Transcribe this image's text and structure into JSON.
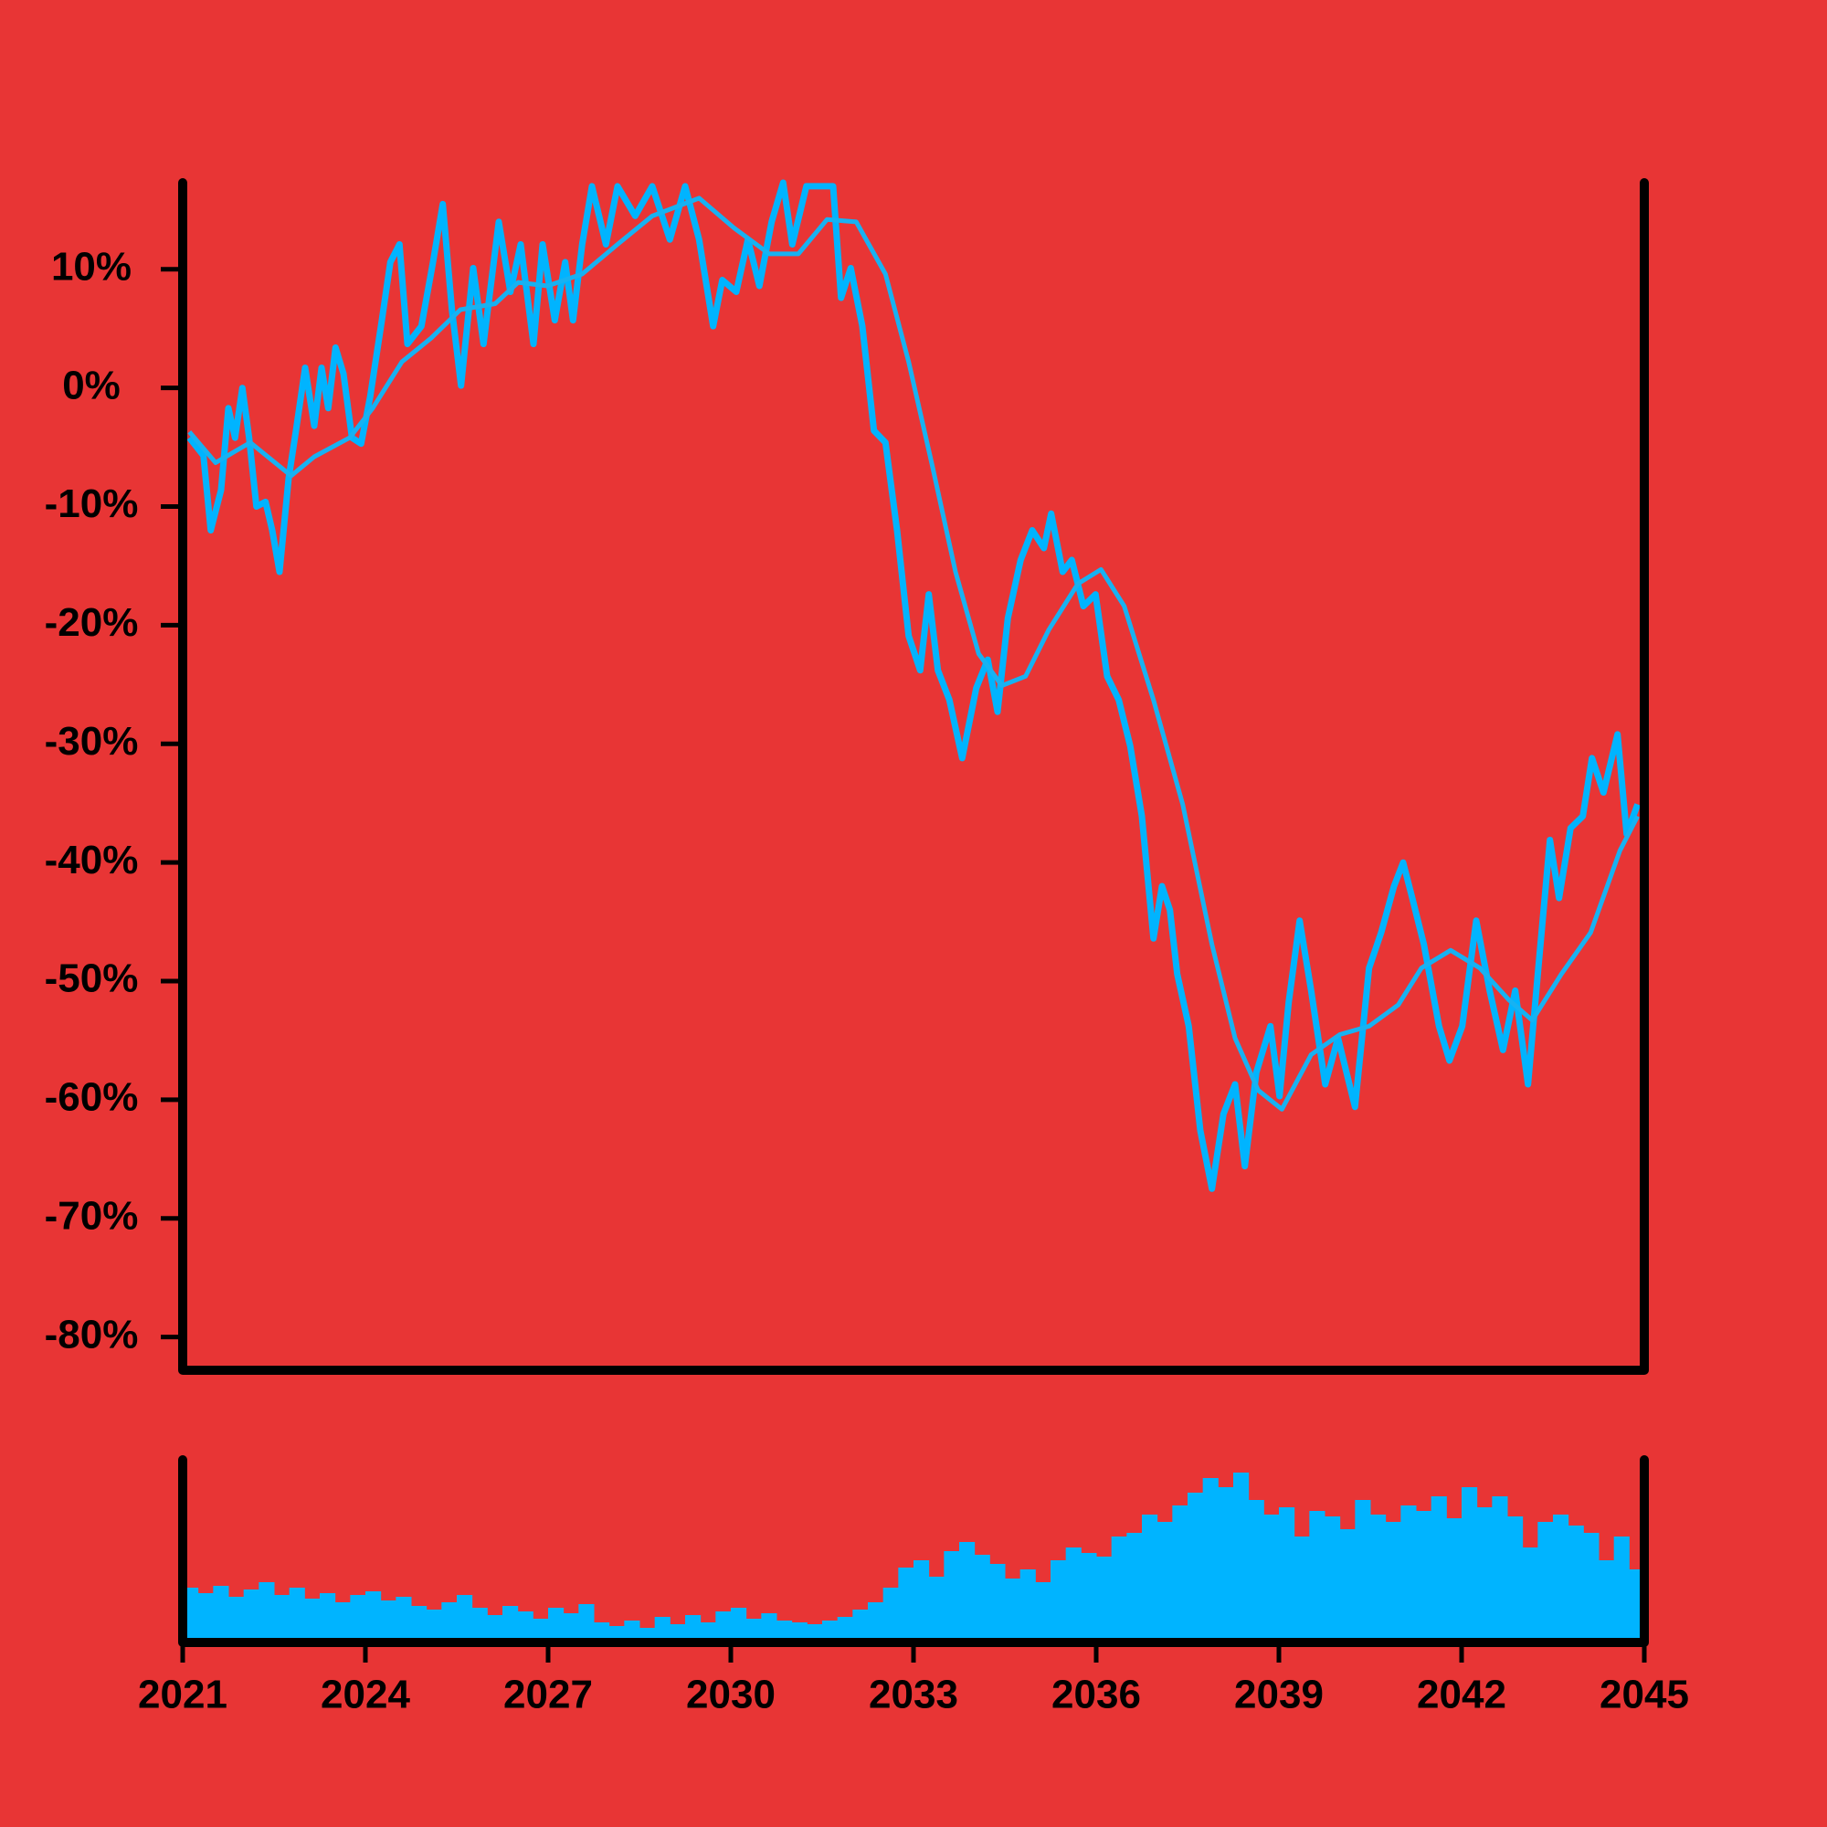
{
  "chart_data": [
    {
      "type": "line",
      "xlim": [
        2021,
        2045
      ],
      "ylim": [
        -82.8,
        17.3
      ],
      "yticks": [
        {
          "value": 10,
          "label": "10%"
        },
        {
          "value": 0,
          "label": "0%"
        },
        {
          "value": -10,
          "label": "-10%"
        },
        {
          "value": -20,
          "label": "-20%"
        },
        {
          "value": -30,
          "label": "-30%"
        },
        {
          "value": -40,
          "label": "-40%"
        },
        {
          "value": -50,
          "label": "-50%"
        },
        {
          "value": -60,
          "label": "-60%"
        },
        {
          "value": -70,
          "label": "-70%"
        },
        {
          "value": -80,
          "label": "-80%"
        }
      ],
      "series": [
        {
          "color": "#00b4ff",
          "x": [
            2021.11,
            2021.34,
            2021.46,
            2021.63,
            2021.75,
            2021.86,
            2021.98,
            2022.09,
            2022.21,
            2022.36,
            2022.47,
            2022.59,
            2022.74,
            2022.86,
            2023.01,
            2023.16,
            2023.28,
            2023.39,
            2023.51,
            2023.64,
            2023.78,
            2023.93,
            2024.08,
            2024.27,
            2024.41,
            2024.56,
            2024.69,
            2024.92,
            2025.11,
            2025.27,
            2025.42,
            2025.57,
            2025.77,
            2025.94,
            2026.19,
            2026.38,
            2026.55,
            2026.76,
            2026.91,
            2027.11,
            2027.28,
            2027.41,
            2027.56,
            2027.72,
            2027.95,
            2028.14,
            2028.43,
            2028.71,
            2029.0,
            2029.25,
            2029.48,
            2029.71,
            2029.86,
            2030.09,
            2030.28,
            2030.47,
            2030.67,
            2030.86,
            2031.01,
            2031.24,
            2031.68,
            2031.81,
            2031.97,
            2032.16,
            2032.35,
            2032.54,
            2032.73,
            2032.92,
            2033.11,
            2033.25,
            2033.4,
            2033.59,
            2033.8,
            2034.03,
            2034.22,
            2034.38,
            2034.55,
            2034.76,
            2034.95,
            2035.14,
            2035.26,
            2035.45,
            2035.6,
            2035.79,
            2035.99,
            2036.18,
            2036.37,
            2036.56,
            2036.75,
            2036.94,
            2037.08,
            2037.21,
            2037.33,
            2037.52,
            2037.71,
            2037.9,
            2038.09,
            2038.28,
            2038.44,
            2038.63,
            2038.86,
            2039.01,
            2039.16,
            2039.34,
            2039.53,
            2039.76,
            2039.97,
            2040.25,
            2040.48,
            2040.68,
            2040.89,
            2041.04,
            2041.19,
            2041.38,
            2041.63,
            2041.8,
            2042.01,
            2042.24,
            2042.46,
            2042.68,
            2042.88,
            2043.09,
            2043.26,
            2043.45,
            2043.6,
            2043.79,
            2043.99,
            2044.14,
            2044.33,
            2044.56,
            2044.71,
            2044.89
          ],
          "values": [
            -4.2,
            -5.7,
            -12,
            -8.6,
            -1.7,
            -4.2,
            0,
            -4.2,
            -10,
            -9.6,
            -12,
            -15.5,
            -7.6,
            -3.6,
            1.7,
            -3.2,
            1.7,
            -1.7,
            3.4,
            1.2,
            -4.2,
            -4.7,
            -0.7,
            5.7,
            10.6,
            12.1,
            3.7,
            5.2,
            10.6,
            15.5,
            6.6,
            0.2,
            10.1,
            3.7,
            14,
            8.1,
            12.1,
            3.7,
            12.1,
            5.7,
            10.6,
            5.7,
            12.1,
            17,
            12.1,
            17,
            14.5,
            17,
            12.5,
            17,
            12.5,
            5.2,
            9.1,
            8.1,
            12.5,
            8.6,
            14,
            17.3,
            12.1,
            17,
            17,
            7.6,
            10.1,
            5.2,
            -3.6,
            -4.6,
            -12,
            -20.9,
            -23.8,
            -17.4,
            -23.8,
            -26.3,
            -31.2,
            -25.3,
            -22.9,
            -27.3,
            -19.4,
            -14.5,
            -12,
            -13.5,
            -10.6,
            -15.5,
            -14.5,
            -18.4,
            -17.4,
            -24.3,
            -26.3,
            -30.2,
            -36.1,
            -46.4,
            -42,
            -44,
            -49.4,
            -53.8,
            -62.6,
            -67.5,
            -61.2,
            -58.7,
            -65.6,
            -57.7,
            -53.8,
            -59.7,
            -51.8,
            -44.9,
            -50.8,
            -58.7,
            -54.8,
            -60.6,
            -48.9,
            -45.9,
            -42,
            -40,
            -43,
            -46.9,
            -53.8,
            -56.7,
            -53.8,
            -44.9,
            -50.8,
            -55.8,
            -50.8,
            -58.7,
            -48.9,
            -38.1,
            -43,
            -37.1,
            -36.1,
            -31.2,
            -34.1,
            -29.2,
            -37.6,
            -35.1
          ]
        },
        {
          "color": "#17b2f2",
          "x": [
            2021.11,
            2021.54,
            2022.11,
            2022.78,
            2023.16,
            2023.74,
            2024.12,
            2024.6,
            2025.08,
            2025.56,
            2026.13,
            2026.51,
            2026.99,
            2027.56,
            2028.14,
            2028.71,
            2029.48,
            2030.05,
            2030.63,
            2031.11,
            2031.58,
            2032.06,
            2032.54,
            2032.92,
            2033.31,
            2033.69,
            2034.07,
            2034.45,
            2034.84,
            2035.22,
            2035.7,
            2036.08,
            2036.46,
            2036.94,
            2037.42,
            2037.9,
            2038.28,
            2038.66,
            2039.05,
            2039.53,
            2040.0,
            2040.48,
            2040.96,
            2041.34,
            2041.82,
            2042.3,
            2042.78,
            2043.16,
            2043.64,
            2044.12,
            2044.6,
            2044.89
          ],
          "values": [
            -3.7,
            -6.3,
            -4.6,
            -7.4,
            -5.8,
            -4.2,
            -1.7,
            2.2,
            4.2,
            6.6,
            7.1,
            8.9,
            8.6,
            9.6,
            12.1,
            14.5,
            16.0,
            13.5,
            11.3,
            11.3,
            14.2,
            14.0,
            9.6,
            2.2,
            -6.6,
            -15.5,
            -22.4,
            -25.1,
            -24.3,
            -20.4,
            -16.5,
            -15.3,
            -18.4,
            -26.3,
            -35.1,
            -46.9,
            -54.8,
            -59.2,
            -60.8,
            -56.2,
            -54.5,
            -53.8,
            -52.0,
            -48.9,
            -47.4,
            -48.9,
            -51.6,
            -53.3,
            -49.4,
            -45.9,
            -39.0,
            -36.1
          ]
        }
      ]
    },
    {
      "type": "bar",
      "color": "#00b4ff",
      "xlim": [
        2021,
        2045
      ],
      "ylim": [
        0,
        100
      ],
      "xticks": [
        2021,
        2024,
        2027,
        2030,
        2033,
        2036,
        2039,
        2042,
        2045
      ],
      "x": [
        2021.125,
        2021.375,
        2021.625,
        2021.875,
        2022.125,
        2022.375,
        2022.625,
        2022.875,
        2023.125,
        2023.375,
        2023.625,
        2023.875,
        2024.125,
        2024.375,
        2024.625,
        2024.875,
        2025.125,
        2025.375,
        2025.625,
        2025.875,
        2026.125,
        2026.375,
        2026.625,
        2026.875,
        2027.125,
        2027.375,
        2027.625,
        2027.875,
        2028.125,
        2028.375,
        2028.625,
        2028.875,
        2029.125,
        2029.375,
        2029.625,
        2029.875,
        2030.125,
        2030.375,
        2030.625,
        2030.875,
        2031.125,
        2031.375,
        2031.625,
        2031.875,
        2032.125,
        2032.375,
        2032.625,
        2032.875,
        2033.125,
        2033.375,
        2033.625,
        2033.875,
        2034.125,
        2034.375,
        2034.625,
        2034.875,
        2035.125,
        2035.375,
        2035.625,
        2035.875,
        2036.125,
        2036.375,
        2036.625,
        2036.875,
        2037.125,
        2037.375,
        2037.625,
        2037.875,
        2038.125,
        2038.375,
        2038.625,
        2038.875,
        2039.125,
        2039.375,
        2039.625,
        2039.875,
        2040.125,
        2040.375,
        2040.625,
        2040.875,
        2041.125,
        2041.375,
        2041.625,
        2041.875,
        2042.125,
        2042.375,
        2042.625,
        2042.875,
        2043.125,
        2043.375,
        2043.625,
        2043.875,
        2044.125,
        2044.375,
        2044.625,
        2044.875
      ],
      "values": [
        30,
        27,
        31,
        25,
        29,
        33,
        26,
        30,
        24,
        27,
        22,
        26,
        28,
        23,
        25,
        20,
        18,
        22,
        26,
        19,
        15,
        20,
        17,
        13,
        19,
        16,
        21,
        11,
        9,
        12,
        8,
        14,
        10,
        15,
        11,
        17,
        19,
        13,
        16,
        12,
        11,
        10,
        12,
        14,
        18,
        22,
        30,
        41,
        45,
        36,
        50,
        55,
        48,
        43,
        35,
        40,
        33,
        45,
        52,
        49,
        47,
        58,
        60,
        70,
        66,
        75,
        82,
        90,
        85,
        93,
        78,
        70,
        74,
        58,
        72,
        69,
        62,
        78,
        70,
        66,
        75,
        72,
        80,
        68,
        85,
        74,
        80,
        69,
        52,
        66,
        70,
        64,
        60,
        45,
        58,
        40
      ]
    }
  ]
}
